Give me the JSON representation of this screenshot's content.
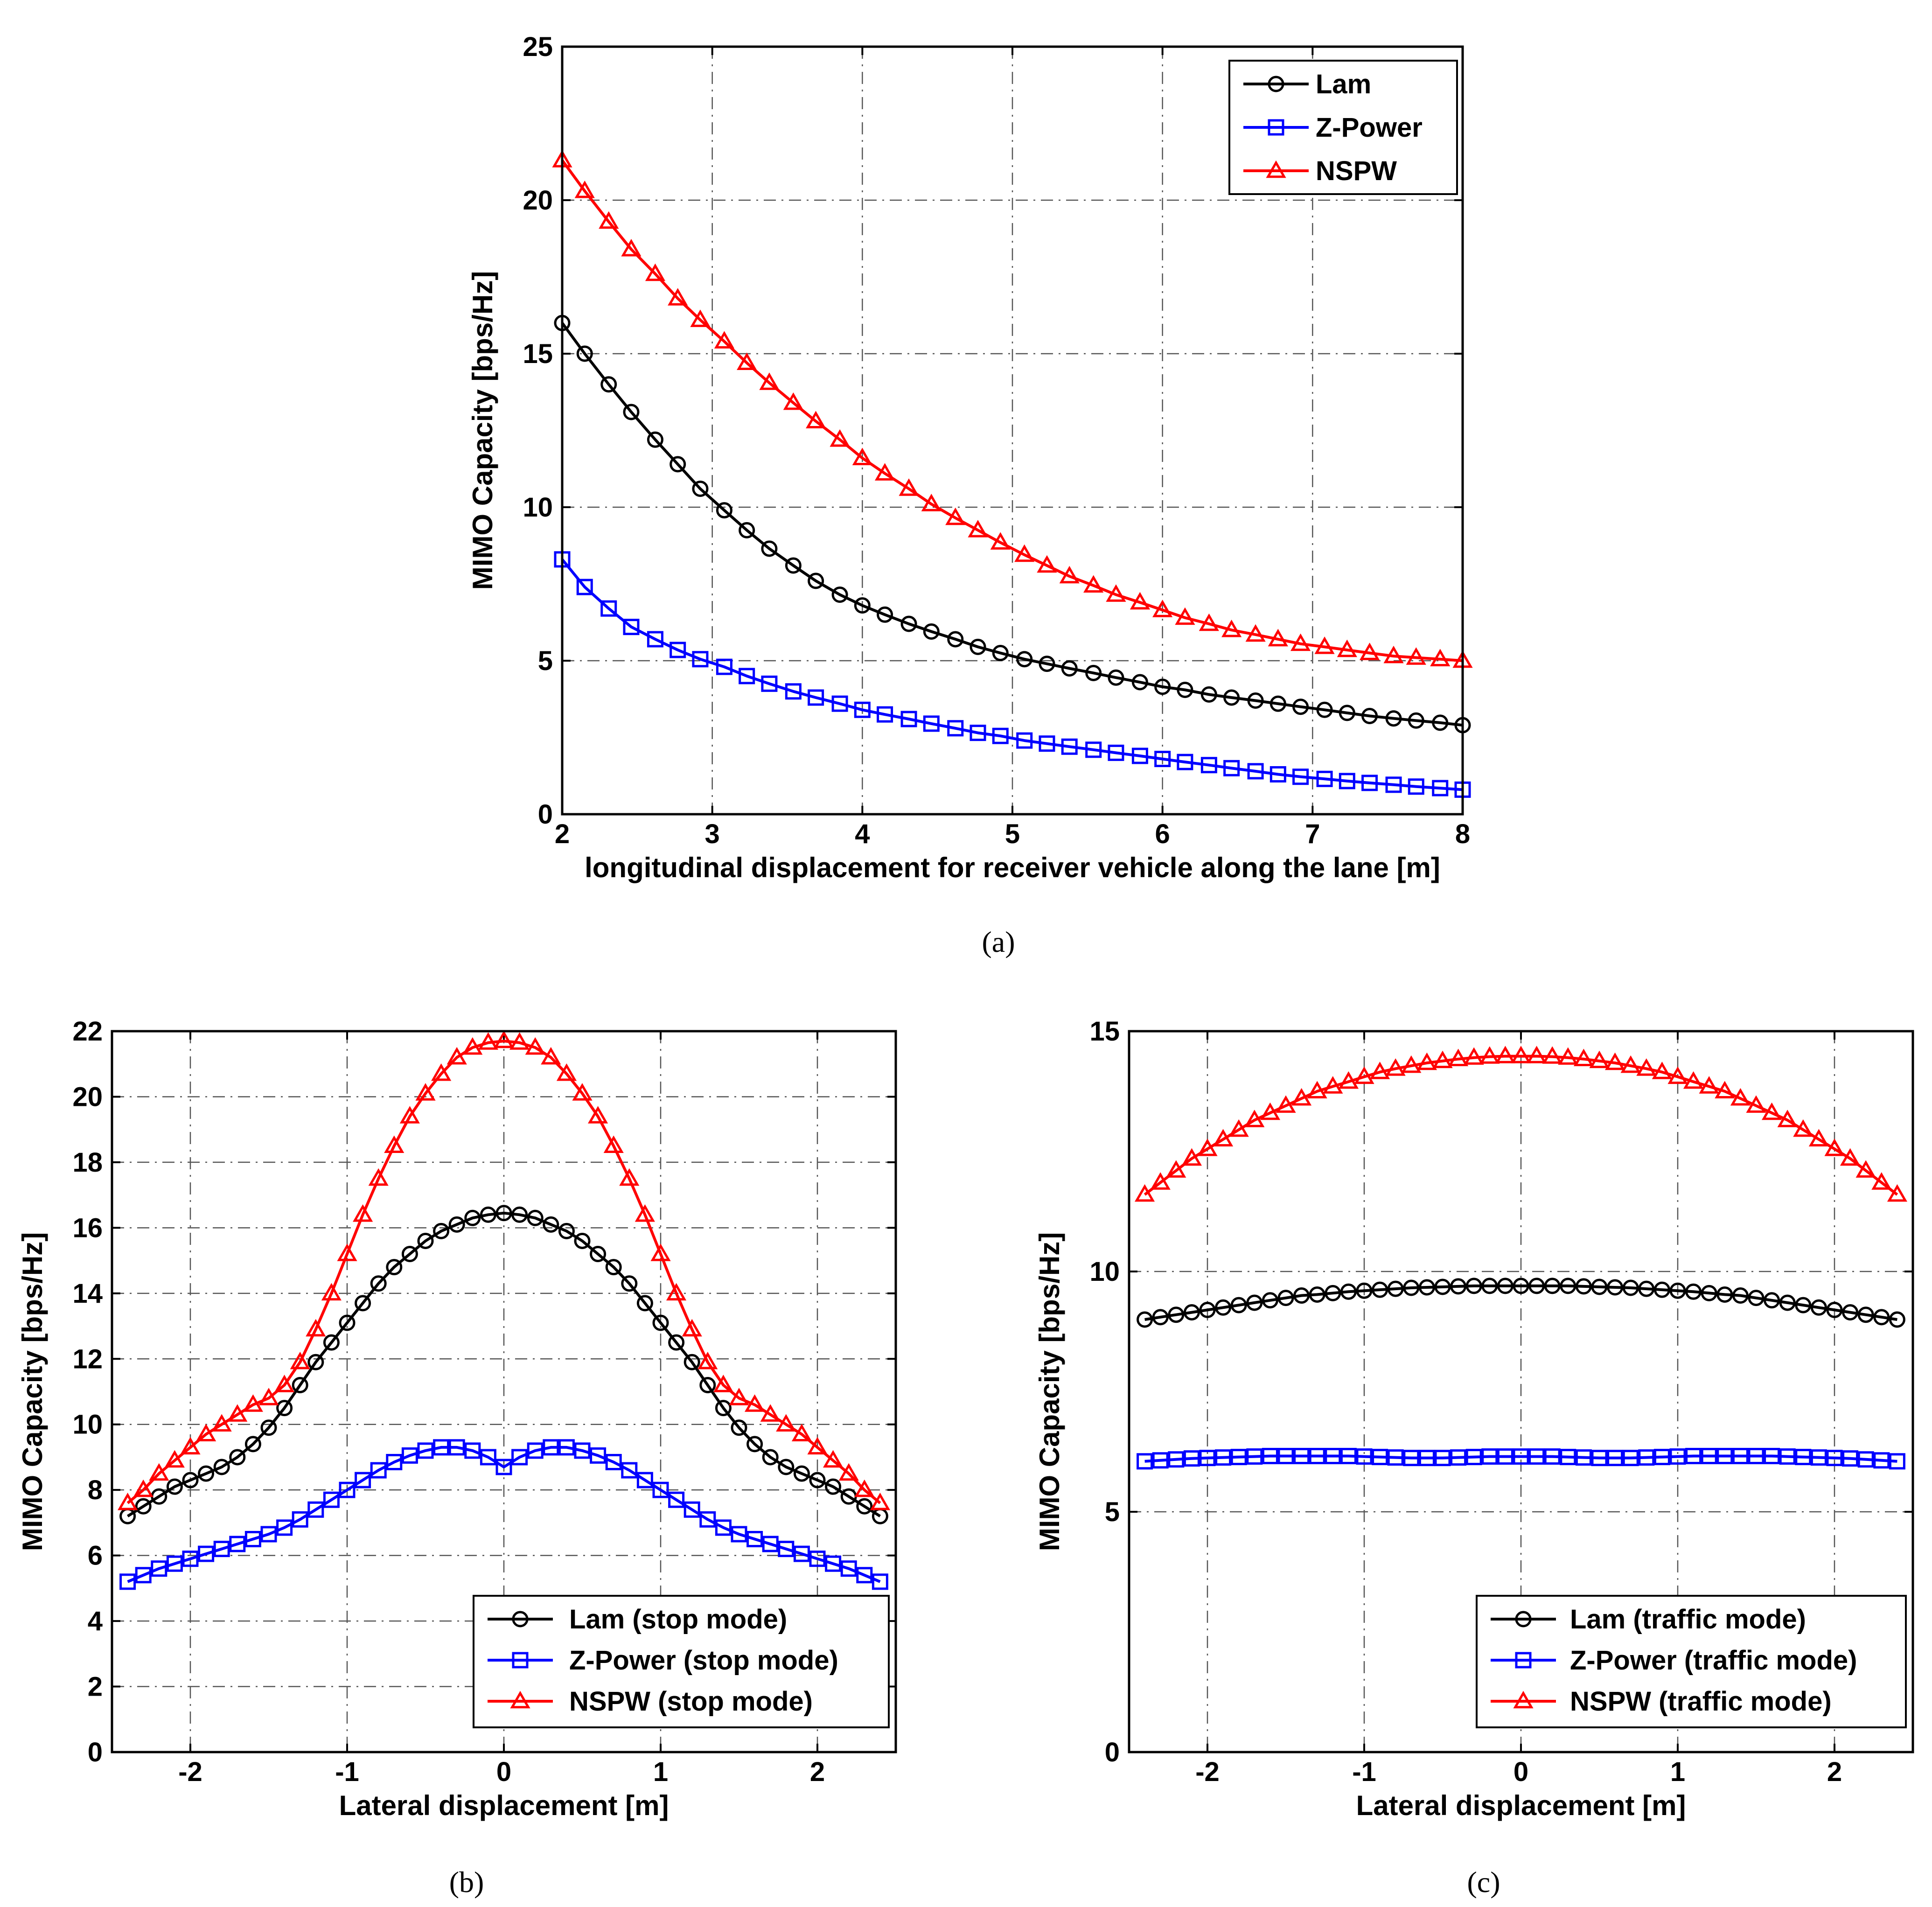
{
  "chart_data": [
    {
      "panel": "a",
      "type": "line",
      "caption": "(a)",
      "xlabel": "longitudinal displacement for receiver vehicle along the lane [m]",
      "ylabel": "MIMO Capacity [bps/Hz]",
      "xlim": [
        2,
        8
      ],
      "ylim": [
        0,
        25
      ],
      "xticks": [
        2,
        3,
        4,
        5,
        6,
        7,
        8
      ],
      "xtick_labels": [
        "2",
        "3",
        "4",
        "5",
        "6",
        "7",
        "8"
      ],
      "yticks": [
        0,
        5,
        10,
        15,
        20,
        25
      ],
      "ytick_labels": [
        "0",
        "5",
        "10",
        "15",
        "20",
        "25"
      ],
      "grid": true,
      "legend_position": "top-right",
      "series": [
        {
          "name": "Lam",
          "color": "#000000",
          "marker": "circle",
          "x": [
            2.0,
            2.15,
            2.31,
            2.46,
            2.62,
            2.77,
            2.92,
            3.08,
            3.23,
            3.38,
            3.54,
            3.69,
            3.85,
            4.0,
            4.15,
            4.31,
            4.46,
            4.62,
            4.77,
            4.92,
            5.08,
            5.23,
            5.38,
            5.54,
            5.69,
            5.85,
            6.0,
            6.15,
            6.31,
            6.46,
            6.62,
            6.77,
            6.92,
            7.08,
            7.23,
            7.38,
            7.54,
            7.69,
            7.85,
            8.0
          ],
          "values": [
            16.0,
            15.0,
            14.0,
            13.1,
            12.2,
            11.4,
            10.6,
            9.9,
            9.25,
            8.65,
            8.1,
            7.6,
            7.15,
            6.8,
            6.5,
            6.2,
            5.95,
            5.7,
            5.45,
            5.25,
            5.05,
            4.9,
            4.75,
            4.6,
            4.45,
            4.3,
            4.15,
            4.05,
            3.9,
            3.8,
            3.7,
            3.6,
            3.5,
            3.4,
            3.3,
            3.2,
            3.12,
            3.05,
            2.98,
            2.9
          ]
        },
        {
          "name": "Z-Power",
          "color": "#0000ff",
          "marker": "square",
          "x": [
            2.0,
            2.15,
            2.31,
            2.46,
            2.62,
            2.77,
            2.92,
            3.08,
            3.23,
            3.38,
            3.54,
            3.69,
            3.85,
            4.0,
            4.15,
            4.31,
            4.46,
            4.62,
            4.77,
            4.92,
            5.08,
            5.23,
            5.38,
            5.54,
            5.69,
            5.85,
            6.0,
            6.15,
            6.31,
            6.46,
            6.62,
            6.77,
            6.92,
            7.08,
            7.23,
            7.38,
            7.54,
            7.69,
            7.85,
            8.0
          ],
          "values": [
            8.3,
            7.4,
            6.7,
            6.1,
            5.7,
            5.35,
            5.05,
            4.8,
            4.5,
            4.25,
            4.0,
            3.8,
            3.6,
            3.4,
            3.25,
            3.1,
            2.95,
            2.8,
            2.65,
            2.55,
            2.4,
            2.3,
            2.2,
            2.1,
            2.0,
            1.9,
            1.8,
            1.7,
            1.6,
            1.5,
            1.4,
            1.3,
            1.22,
            1.15,
            1.08,
            1.02,
            0.96,
            0.9,
            0.85,
            0.8
          ]
        },
        {
          "name": "NSPW",
          "color": "#ff0000",
          "marker": "triangle",
          "x": [
            2.0,
            2.15,
            2.31,
            2.46,
            2.62,
            2.77,
            2.92,
            3.08,
            3.23,
            3.38,
            3.54,
            3.69,
            3.85,
            4.0,
            4.15,
            4.31,
            4.46,
            4.62,
            4.77,
            4.92,
            5.08,
            5.23,
            5.38,
            5.54,
            5.69,
            5.85,
            6.0,
            6.15,
            6.31,
            6.46,
            6.62,
            6.77,
            6.92,
            7.08,
            7.23,
            7.38,
            7.54,
            7.69,
            7.85,
            8.0
          ],
          "values": [
            21.3,
            20.3,
            19.3,
            18.4,
            17.6,
            16.8,
            16.1,
            15.4,
            14.7,
            14.05,
            13.4,
            12.8,
            12.2,
            11.6,
            11.1,
            10.6,
            10.1,
            9.65,
            9.25,
            8.85,
            8.45,
            8.1,
            7.75,
            7.45,
            7.15,
            6.9,
            6.65,
            6.4,
            6.2,
            6.0,
            5.85,
            5.7,
            5.55,
            5.45,
            5.35,
            5.25,
            5.15,
            5.1,
            5.05,
            5.0
          ]
        }
      ]
    },
    {
      "panel": "b",
      "type": "line",
      "caption": "(b)",
      "xlabel": "Lateral displacement [m]",
      "ylabel": "MIMO Capacity [bps/Hz]",
      "xlim": [
        -2.5,
        2.5
      ],
      "ylim": [
        0,
        22
      ],
      "xticks": [
        -2,
        -1,
        0,
        1,
        2
      ],
      "xtick_labels": [
        "-2",
        "-1",
        "0",
        "1",
        "2"
      ],
      "yticks": [
        0,
        2,
        4,
        6,
        8,
        10,
        12,
        14,
        16,
        18,
        20,
        22
      ],
      "ytick_labels": [
        "0",
        "2",
        "4",
        "6",
        "8",
        "10",
        "12",
        "14",
        "16",
        "18",
        "20",
        "22"
      ],
      "grid": true,
      "legend_position": "bottom-right",
      "series": [
        {
          "name": "Lam (stop mode)",
          "color": "#000000",
          "marker": "circle",
          "x": [
            -2.4,
            -2.3,
            -2.2,
            -2.1,
            -2.0,
            -1.9,
            -1.8,
            -1.7,
            -1.6,
            -1.5,
            -1.4,
            -1.3,
            -1.2,
            -1.1,
            -1.0,
            -0.9,
            -0.8,
            -0.7,
            -0.6,
            -0.5,
            -0.4,
            -0.3,
            -0.2,
            -0.1,
            0.0,
            0.1,
            0.2,
            0.3,
            0.4,
            0.5,
            0.6,
            0.7,
            0.8,
            0.9,
            1.0,
            1.1,
            1.2,
            1.3,
            1.4,
            1.5,
            1.6,
            1.7,
            1.8,
            1.9,
            2.0,
            2.1,
            2.2,
            2.3,
            2.4
          ],
          "values": [
            7.2,
            7.5,
            7.8,
            8.1,
            8.3,
            8.5,
            8.7,
            9.0,
            9.4,
            9.9,
            10.5,
            11.2,
            11.9,
            12.5,
            13.1,
            13.7,
            14.3,
            14.8,
            15.2,
            15.6,
            15.9,
            16.1,
            16.3,
            16.4,
            16.45,
            16.4,
            16.3,
            16.1,
            15.9,
            15.6,
            15.2,
            14.8,
            14.3,
            13.7,
            13.1,
            12.5,
            11.9,
            11.2,
            10.5,
            9.9,
            9.4,
            9.0,
            8.7,
            8.5,
            8.3,
            8.1,
            7.8,
            7.5,
            7.2
          ]
        },
        {
          "name": "Z-Power (stop mode)",
          "color": "#0000ff",
          "marker": "square",
          "x": [
            -2.4,
            -2.3,
            -2.2,
            -2.1,
            -2.0,
            -1.9,
            -1.8,
            -1.7,
            -1.6,
            -1.5,
            -1.4,
            -1.3,
            -1.2,
            -1.1,
            -1.0,
            -0.9,
            -0.8,
            -0.7,
            -0.6,
            -0.5,
            -0.4,
            -0.3,
            -0.2,
            -0.1,
            0.0,
            0.1,
            0.2,
            0.3,
            0.4,
            0.5,
            0.6,
            0.7,
            0.8,
            0.9,
            1.0,
            1.1,
            1.2,
            1.3,
            1.4,
            1.5,
            1.6,
            1.7,
            1.8,
            1.9,
            2.0,
            2.1,
            2.2,
            2.3,
            2.4
          ],
          "values": [
            5.2,
            5.4,
            5.6,
            5.75,
            5.9,
            6.05,
            6.2,
            6.35,
            6.5,
            6.65,
            6.85,
            7.1,
            7.4,
            7.7,
            8.0,
            8.3,
            8.6,
            8.85,
            9.05,
            9.2,
            9.3,
            9.3,
            9.2,
            9.0,
            8.7,
            9.0,
            9.2,
            9.3,
            9.3,
            9.2,
            9.05,
            8.85,
            8.6,
            8.3,
            8.0,
            7.7,
            7.4,
            7.1,
            6.85,
            6.65,
            6.5,
            6.35,
            6.2,
            6.05,
            5.9,
            5.75,
            5.6,
            5.4,
            5.2
          ]
        },
        {
          "name": "NSPW (stop mode)",
          "color": "#ff0000",
          "marker": "triangle",
          "x": [
            -2.4,
            -2.3,
            -2.2,
            -2.1,
            -2.0,
            -1.9,
            -1.8,
            -1.7,
            -1.6,
            -1.5,
            -1.4,
            -1.3,
            -1.2,
            -1.1,
            -1.0,
            -0.9,
            -0.8,
            -0.7,
            -0.6,
            -0.5,
            -0.4,
            -0.3,
            -0.2,
            -0.1,
            0.0,
            0.1,
            0.2,
            0.3,
            0.4,
            0.5,
            0.6,
            0.7,
            0.8,
            0.9,
            1.0,
            1.1,
            1.2,
            1.3,
            1.4,
            1.5,
            1.6,
            1.7,
            1.8,
            1.9,
            2.0,
            2.1,
            2.2,
            2.3,
            2.4
          ],
          "values": [
            7.6,
            8.0,
            8.5,
            8.9,
            9.3,
            9.7,
            10.0,
            10.3,
            10.6,
            10.8,
            11.2,
            11.9,
            12.9,
            14.0,
            15.2,
            16.4,
            17.5,
            18.5,
            19.4,
            20.1,
            20.7,
            21.2,
            21.5,
            21.65,
            21.7,
            21.65,
            21.5,
            21.2,
            20.7,
            20.1,
            19.4,
            18.5,
            17.5,
            16.4,
            15.2,
            14.0,
            12.9,
            11.9,
            11.2,
            10.8,
            10.6,
            10.3,
            10.0,
            9.7,
            9.3,
            8.9,
            8.5,
            8.0,
            7.6
          ]
        }
      ]
    },
    {
      "panel": "c",
      "type": "line",
      "caption": "(c)",
      "xlabel": "Lateral displacement [m]",
      "ylabel": "MIMO Capacity [bps/Hz]",
      "xlim": [
        -2.5,
        2.5
      ],
      "ylim": [
        0,
        15
      ],
      "xticks": [
        -2,
        -1,
        0,
        1,
        2
      ],
      "xtick_labels": [
        "-2",
        "-1",
        "0",
        "1",
        "2"
      ],
      "yticks": [
        0,
        5,
        10,
        15
      ],
      "ytick_labels": [
        "0",
        "5",
        "10",
        "15"
      ],
      "grid": true,
      "legend_position": "bottom-right",
      "series": [
        {
          "name": "Lam (traffic mode)",
          "color": "#000000",
          "marker": "circle",
          "x": [
            -2.4,
            -2.3,
            -2.2,
            -2.1,
            -2.0,
            -1.9,
            -1.8,
            -1.7,
            -1.6,
            -1.5,
            -1.4,
            -1.3,
            -1.2,
            -1.1,
            -1.0,
            -0.9,
            -0.8,
            -0.7,
            -0.6,
            -0.5,
            -0.4,
            -0.3,
            -0.2,
            -0.1,
            0.0,
            0.1,
            0.2,
            0.3,
            0.4,
            0.5,
            0.6,
            0.7,
            0.8,
            0.9,
            1.0,
            1.1,
            1.2,
            1.3,
            1.4,
            1.5,
            1.6,
            1.7,
            1.8,
            1.9,
            2.0,
            2.1,
            2.2,
            2.3,
            2.4
          ],
          "values": [
            9.0,
            9.05,
            9.1,
            9.15,
            9.2,
            9.25,
            9.3,
            9.35,
            9.4,
            9.45,
            9.5,
            9.52,
            9.55,
            9.58,
            9.6,
            9.62,
            9.64,
            9.66,
            9.67,
            9.68,
            9.69,
            9.7,
            9.7,
            9.7,
            9.7,
            9.7,
            9.7,
            9.7,
            9.69,
            9.68,
            9.67,
            9.66,
            9.64,
            9.62,
            9.6,
            9.58,
            9.55,
            9.52,
            9.5,
            9.45,
            9.4,
            9.35,
            9.3,
            9.25,
            9.2,
            9.15,
            9.1,
            9.05,
            9.0
          ]
        },
        {
          "name": "Z-Power (traffic mode)",
          "color": "#0000ff",
          "marker": "square",
          "x": [
            -2.4,
            -2.3,
            -2.2,
            -2.1,
            -2.0,
            -1.9,
            -1.8,
            -1.7,
            -1.6,
            -1.5,
            -1.4,
            -1.3,
            -1.2,
            -1.1,
            -1.0,
            -0.9,
            -0.8,
            -0.7,
            -0.6,
            -0.5,
            -0.4,
            -0.3,
            -0.2,
            -0.1,
            0.0,
            0.1,
            0.2,
            0.3,
            0.4,
            0.5,
            0.6,
            0.7,
            0.8,
            0.9,
            1.0,
            1.1,
            1.2,
            1.3,
            1.4,
            1.5,
            1.6,
            1.7,
            1.8,
            1.9,
            2.0,
            2.1,
            2.2,
            2.3,
            2.4
          ],
          "values": [
            6.05,
            6.07,
            6.09,
            6.11,
            6.12,
            6.13,
            6.14,
            6.15,
            6.16,
            6.16,
            6.16,
            6.16,
            6.16,
            6.16,
            6.15,
            6.14,
            6.13,
            6.12,
            6.12,
            6.12,
            6.13,
            6.14,
            6.15,
            6.15,
            6.15,
            6.15,
            6.15,
            6.14,
            6.13,
            6.12,
            6.12,
            6.12,
            6.13,
            6.14,
            6.15,
            6.16,
            6.16,
            6.16,
            6.16,
            6.16,
            6.16,
            6.15,
            6.14,
            6.13,
            6.12,
            6.11,
            6.09,
            6.07,
            6.05
          ]
        },
        {
          "name": "NSPW (traffic mode)",
          "color": "#ff0000",
          "marker": "triangle",
          "x": [
            -2.4,
            -2.3,
            -2.2,
            -2.1,
            -2.0,
            -1.9,
            -1.8,
            -1.7,
            -1.6,
            -1.5,
            -1.4,
            -1.3,
            -1.2,
            -1.1,
            -1.0,
            -0.9,
            -0.8,
            -0.7,
            -0.6,
            -0.5,
            -0.4,
            -0.3,
            -0.2,
            -0.1,
            0.0,
            0.1,
            0.2,
            0.3,
            0.4,
            0.5,
            0.6,
            0.7,
            0.8,
            0.9,
            1.0,
            1.1,
            1.2,
            1.3,
            1.4,
            1.5,
            1.6,
            1.7,
            1.8,
            1.9,
            2.0,
            2.1,
            2.2,
            2.3,
            2.4
          ],
          "values": [
            11.6,
            11.85,
            12.1,
            12.35,
            12.55,
            12.75,
            12.95,
            13.15,
            13.3,
            13.45,
            13.6,
            13.75,
            13.85,
            13.95,
            14.05,
            14.15,
            14.22,
            14.28,
            14.34,
            14.38,
            14.42,
            14.45,
            14.47,
            14.48,
            14.48,
            14.48,
            14.47,
            14.45,
            14.42,
            14.38,
            14.34,
            14.28,
            14.22,
            14.15,
            14.05,
            13.95,
            13.85,
            13.75,
            13.6,
            13.45,
            13.3,
            13.15,
            12.95,
            12.75,
            12.55,
            12.35,
            12.1,
            11.85,
            11.6
          ]
        }
      ]
    }
  ]
}
